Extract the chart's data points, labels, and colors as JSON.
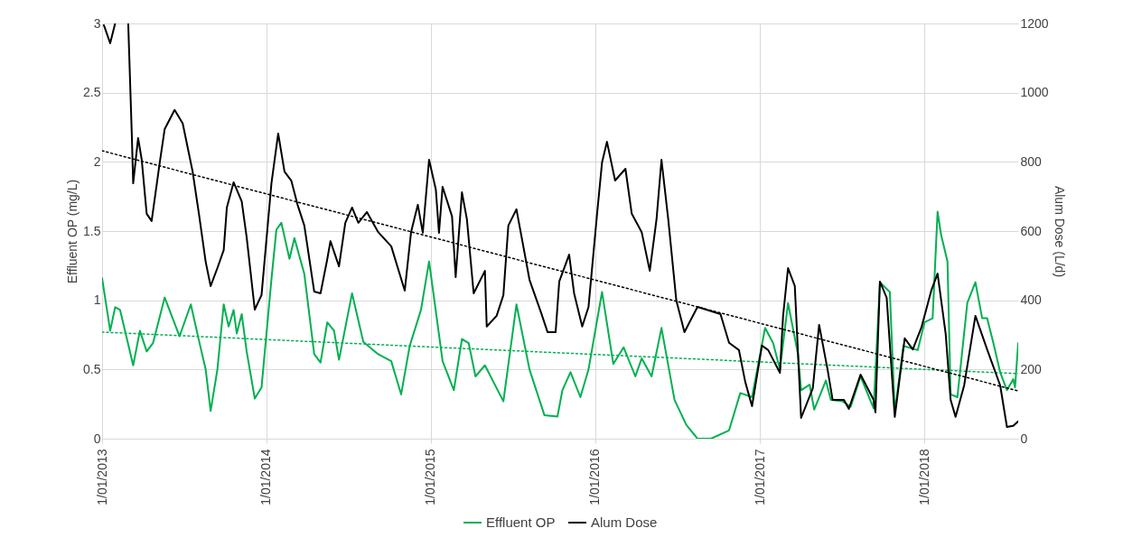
{
  "chart_data": {
    "type": "line",
    "ylabel": "Effluent OP (mg/L)",
    "y2label": "Alum Dose (L/d)",
    "xlim": [
      "2013-01-01",
      "2018-07-28"
    ],
    "xticks": [
      {
        "value": "2013-01-01",
        "label": "1/01/2013"
      },
      {
        "value": "2014-01-01",
        "label": "1/01/2014"
      },
      {
        "value": "2015-01-01",
        "label": "1/01/2015"
      },
      {
        "value": "2016-01-01",
        "label": "1/01/2016"
      },
      {
        "value": "2017-01-01",
        "label": "1/01/2017"
      },
      {
        "value": "2018-01-01",
        "label": "1/01/2018"
      }
    ],
    "ylim": [
      0,
      3
    ],
    "yticks": [
      0,
      0.5,
      1,
      1.5,
      2,
      2.5,
      3
    ],
    "y2lim": [
      0,
      1200
    ],
    "y2ticks": [
      0,
      200,
      400,
      600,
      800,
      1000,
      1200
    ],
    "grid": true,
    "legend": "bottom",
    "series": [
      {
        "name": "Effluent OP",
        "color": "#00b050",
        "x": [
          "2013-01-01",
          "2013-01-19",
          "2013-01-30",
          "2013-02-10",
          "2013-03-11",
          "2013-03-26",
          "2013-04-10",
          "2013-04-24",
          "2013-05-20",
          "2013-06-22",
          "2013-07-17",
          "2013-08-04",
          "2013-08-19",
          "2013-08-30",
          "2013-09-14",
          "2013-09-28",
          "2013-10-09",
          "2013-10-20",
          "2013-10-27",
          "2013-11-07",
          "2013-11-18",
          "2013-12-06",
          "2013-12-21",
          "2014-01-12",
          "2014-01-23",
          "2014-02-03",
          "2014-02-21",
          "2014-03-04",
          "2014-03-26",
          "2014-04-17",
          "2014-05-01",
          "2014-05-16",
          "2014-05-31",
          "2014-06-11",
          "2014-07-10",
          "2014-08-04",
          "2014-09-06",
          "2014-10-05",
          "2014-10-27",
          "2014-11-15",
          "2014-12-10",
          "2014-12-28",
          "2015-01-27",
          "2015-02-21",
          "2015-03-11",
          "2015-03-26",
          "2015-04-10",
          "2015-05-01",
          "2015-06-11",
          "2015-07-10",
          "2015-08-08",
          "2015-09-10",
          "2015-10-09",
          "2015-10-20",
          "2015-11-07",
          "2015-11-29",
          "2015-12-17",
          "2016-01-16",
          "2016-02-10",
          "2016-03-04",
          "2016-03-30",
          "2016-04-13",
          "2016-05-05",
          "2016-05-27",
          "2016-06-25",
          "2016-07-21",
          "2016-08-15",
          "2016-09-14",
          "2016-10-24",
          "2016-11-18",
          "2016-12-14",
          "2016-12-28",
          "2017-01-12",
          "2017-01-30",
          "2017-02-14",
          "2017-03-04",
          "2017-03-26",
          "2017-04-02",
          "2017-04-21",
          "2017-05-01",
          "2017-05-27",
          "2017-06-07",
          "2017-07-03",
          "2017-07-21",
          "2017-08-12",
          "2017-09-10",
          "2017-09-24",
          "2017-10-16",
          "2017-10-27",
          "2017-11-15",
          "2017-12-17",
          "2018-01-01",
          "2018-01-19",
          "2018-01-30",
          "2018-02-07",
          "2018-02-21",
          "2018-02-28",
          "2018-03-15",
          "2018-04-06",
          "2018-04-24",
          "2018-05-09",
          "2018-05-20",
          "2018-06-03",
          "2018-06-18",
          "2018-07-03",
          "2018-07-17",
          "2018-07-21",
          "2018-07-28"
        ],
        "values": [
          1.16,
          0.78,
          0.95,
          0.93,
          0.53,
          0.78,
          0.63,
          0.69,
          1.02,
          0.74,
          0.97,
          0.71,
          0.5,
          0.2,
          0.5,
          0.97,
          0.81,
          0.93,
          0.76,
          0.9,
          0.63,
          0.29,
          0.37,
          1.15,
          1.51,
          1.56,
          1.3,
          1.45,
          1.19,
          0.61,
          0.55,
          0.84,
          0.78,
          0.57,
          1.05,
          0.7,
          0.61,
          0.56,
          0.32,
          0.67,
          0.93,
          1.28,
          0.56,
          0.35,
          0.72,
          0.69,
          0.45,
          0.53,
          0.27,
          0.97,
          0.5,
          0.17,
          0.16,
          0.35,
          0.48,
          0.3,
          0.5,
          1.06,
          0.54,
          0.66,
          0.45,
          0.58,
          0.45,
          0.8,
          0.28,
          0.1,
          0,
          0,
          0.06,
          0.33,
          0.3,
          0.54,
          0.8,
          0.69,
          0.5,
          0.98,
          0.61,
          0.35,
          0.39,
          0.21,
          0.42,
          0.28,
          0.27,
          0.23,
          0.45,
          0.22,
          1.13,
          1.06,
          0.19,
          0.67,
          0.64,
          0.84,
          0.87,
          1.64,
          1.47,
          1.28,
          0.32,
          0.3,
          0.98,
          1.13,
          0.87,
          0.87,
          0.69,
          0.48,
          0.35,
          0.43,
          0.37,
          0.69
        ]
      },
      {
        "name": "Alum Dose",
        "color": "#000000",
        "axis": "y2",
        "x": [
          "2013-01-05",
          "2013-01-19",
          "2013-01-30",
          "2013-02-10",
          "2013-02-28",
          "2013-03-08",
          "2013-03-11",
          "2013-03-22",
          "2013-03-30",
          "2013-04-10",
          "2013-04-21",
          "2013-05-09",
          "2013-05-20",
          "2013-06-11",
          "2013-06-29",
          "2013-07-21",
          "2013-08-04",
          "2013-08-19",
          "2013-08-30",
          "2013-09-14",
          "2013-09-28",
          "2013-10-05",
          "2013-10-20",
          "2013-11-07",
          "2013-11-18",
          "2013-12-06",
          "2013-12-21",
          "2014-01-12",
          "2014-01-27",
          "2014-02-10",
          "2014-02-25",
          "2014-03-11",
          "2014-03-26",
          "2014-04-17",
          "2014-05-01",
          "2014-05-16",
          "2014-05-23",
          "2014-06-11",
          "2014-06-25",
          "2014-07-10",
          "2014-07-24",
          "2014-08-12",
          "2014-09-06",
          "2014-10-05",
          "2014-11-04",
          "2014-11-18",
          "2014-12-03",
          "2014-12-14",
          "2014-12-28",
          "2015-01-12",
          "2015-01-19",
          "2015-01-27",
          "2015-02-17",
          "2015-02-25",
          "2015-03-11",
          "2015-03-22",
          "2015-04-06",
          "2015-05-01",
          "2015-05-05",
          "2015-05-27",
          "2015-06-11",
          "2015-06-22",
          "2015-07-10",
          "2015-08-08",
          "2015-09-03",
          "2015-09-17",
          "2015-10-05",
          "2015-10-13",
          "2015-11-04",
          "2015-11-15",
          "2015-12-03",
          "2015-12-17",
          "2016-01-05",
          "2016-01-16",
          "2016-01-27",
          "2016-02-14",
          "2016-03-08",
          "2016-03-22",
          "2016-04-13",
          "2016-05-01",
          "2016-05-16",
          "2016-05-27",
          "2016-06-11",
          "2016-06-29",
          "2016-07-17",
          "2016-08-15",
          "2016-10-05",
          "2016-10-24",
          "2016-11-15",
          "2016-11-29",
          "2016-12-14",
          "2017-01-05",
          "2017-01-19",
          "2017-02-14",
          "2017-02-21",
          "2017-03-04",
          "2017-03-19",
          "2017-04-02",
          "2017-04-28",
          "2017-05-12",
          "2017-05-31",
          "2017-06-11",
          "2017-07-06",
          "2017-07-17",
          "2017-08-12",
          "2017-09-10",
          "2017-09-14",
          "2017-09-24",
          "2017-10-09",
          "2017-10-27",
          "2017-11-18",
          "2017-12-06",
          "2017-12-25",
          "2018-01-16",
          "2018-01-30",
          "2018-02-17",
          "2018-02-28",
          "2018-03-11",
          "2018-03-30",
          "2018-04-24",
          "2018-05-20",
          "2018-06-18",
          "2018-07-03",
          "2018-07-17",
          "2018-07-28"
        ],
        "values": [
          1195,
          1143,
          1200,
          null,
          1200,
          877,
          738,
          869,
          806,
          650,
          629,
          798,
          895,
          950,
          911,
          772,
          650,
          511,
          441,
          493,
          545,
          668,
          741,
          686,
          582,
          373,
          415,
          738,
          882,
          772,
          746,
          676,
          616,
          425,
          420,
          519,
          571,
          498,
          624,
          668,
          624,
          655,
          597,
          556,
          428,
          597,
          676,
          595,
          806,
          720,
          595,
          728,
          642,
          467,
          712,
          634,
          420,
          485,
          324,
          355,
          415,
          616,
          663,
          459,
          363,
          308,
          308,
          454,
          532,
          420,
          324,
          381,
          650,
          798,
          858,
          746,
          780,
          650,
          597,
          485,
          634,
          806,
          634,
          399,
          308,
          381,
          360,
          277,
          256,
          164,
          94,
          269,
          256,
          190,
          355,
          493,
          441,
          60,
          146,
          329,
          198,
          112,
          112,
          86,
          185,
          112,
          76,
          454,
          407,
          63,
          290,
          258,
          321,
          428,
          477,
          303,
          112,
          63,
          154,
          355,
          258,
          154,
          34,
          37,
          50
        ]
      },
      {
        "type": "line",
        "color": "#00b050",
        "line_style": "dotted",
        "x": [
          "2013-01-01",
          "2018-07-28"
        ],
        "values": [
          0.77,
          0.47
        ]
      },
      {
        "type": "line",
        "color": "#000000",
        "line_style": "dotted",
        "axis": "y2",
        "x": [
          "2013-01-01",
          "2018-07-28"
        ],
        "values": [
          832,
          138
        ]
      }
    ]
  }
}
